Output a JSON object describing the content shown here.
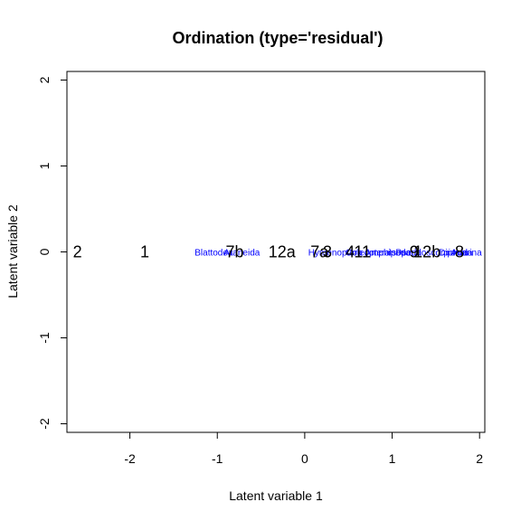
{
  "chart_data": {
    "type": "scatter",
    "title": "Ordination (type='residual')",
    "xlabel": "Latent variable 1",
    "ylabel": "Latent variable 2",
    "xlim": [
      -2.72,
      2.06
    ],
    "ylim": [
      -2.1,
      2.1
    ],
    "xticks": [
      -2,
      -1,
      0,
      1,
      2
    ],
    "yticks": [
      -2,
      -1,
      0,
      1,
      2
    ],
    "grid": false,
    "sites": [
      {
        "label": "2",
        "x": -2.6,
        "y": 0
      },
      {
        "label": "1",
        "x": -1.83,
        "y": 0
      },
      {
        "label": "7b",
        "x": -0.8,
        "y": 0
      },
      {
        "label": "12a",
        "x": -0.26,
        "y": 0
      },
      {
        "label": "7a",
        "x": 0.17,
        "y": 0
      },
      {
        "label": "3",
        "x": 0.26,
        "y": 0
      },
      {
        "label": "4",
        "x": 0.52,
        "y": 0
      },
      {
        "label": "11",
        "x": 0.66,
        "y": 0
      },
      {
        "label": "9",
        "x": 1.25,
        "y": 0
      },
      {
        "label": "12b",
        "x": 1.4,
        "y": 0
      },
      {
        "label": "8",
        "x": 1.77,
        "y": 0
      }
    ],
    "species": [
      {
        "label": "Blattodea",
        "x": -1.04,
        "y": 0
      },
      {
        "label": "Araneida",
        "x": -0.72,
        "y": 0
      },
      {
        "label": "Hymenoptera",
        "x": 0.35,
        "y": 0
      },
      {
        "label": "Coleoptera",
        "x": 0.72,
        "y": 0
      },
      {
        "label": "Amphipoda",
        "x": 0.95,
        "y": 0
      },
      {
        "label": "Isopoda",
        "x": 1.15,
        "y": 0
      },
      {
        "label": "Pseudoscorpionida",
        "x": 1.48,
        "y": 0
      },
      {
        "label": "Diptera",
        "x": 1.7,
        "y": 0
      },
      {
        "label": "Acarina",
        "x": 1.85,
        "y": 0
      }
    ]
  }
}
